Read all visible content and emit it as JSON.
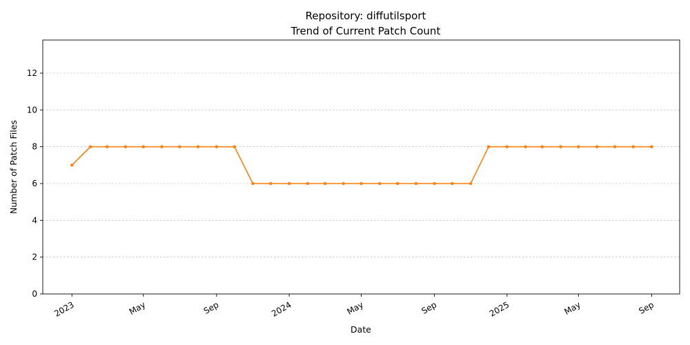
{
  "chart_data": {
    "type": "line",
    "title": "Repository: diffutilsport",
    "subtitle": "Trend of Current Patch Count",
    "xlabel": "Date",
    "ylabel": "Number of Patch Files",
    "ylim": [
      0,
      13.8
    ],
    "yticks": [
      0,
      2,
      4,
      6,
      8,
      10,
      12
    ],
    "xlim": [
      "2022-11-13",
      "2025-10-18"
    ],
    "xticks": [
      {
        "date": "2023-01-01",
        "label": "2023"
      },
      {
        "date": "2023-05-01",
        "label": "May"
      },
      {
        "date": "2023-09-01",
        "label": "Sep"
      },
      {
        "date": "2024-01-01",
        "label": "2024"
      },
      {
        "date": "2024-05-01",
        "label": "May"
      },
      {
        "date": "2024-09-01",
        "label": "Sep"
      },
      {
        "date": "2025-01-01",
        "label": "2025"
      },
      {
        "date": "2025-05-01",
        "label": "May"
      },
      {
        "date": "2025-09-01",
        "label": "Sep"
      }
    ],
    "grid": "y-dashed",
    "color": "#ff7f0e",
    "series": [
      {
        "x": [
          "2023-01-01",
          "2023-02-01",
          "2023-03-01",
          "2023-04-01",
          "2023-05-01",
          "2023-06-01",
          "2023-07-01",
          "2023-08-01",
          "2023-09-01",
          "2023-10-01",
          "2023-11-01",
          "2023-12-01",
          "2024-01-01",
          "2024-02-01",
          "2024-03-01",
          "2024-04-01",
          "2024-05-01",
          "2024-06-01",
          "2024-07-01",
          "2024-08-01",
          "2024-09-01",
          "2024-10-01",
          "2024-11-01",
          "2024-12-01",
          "2025-01-01",
          "2025-02-01",
          "2025-03-01",
          "2025-04-01",
          "2025-05-01",
          "2025-06-01",
          "2025-07-01",
          "2025-08-01",
          "2025-09-01"
        ],
        "values": [
          7,
          8,
          8,
          8,
          8,
          8,
          8,
          8,
          8,
          8,
          6,
          6,
          6,
          6,
          6,
          6,
          6,
          6,
          6,
          6,
          6,
          6,
          6,
          8,
          8,
          8,
          8,
          8,
          8,
          8,
          8,
          8,
          8
        ]
      }
    ]
  }
}
